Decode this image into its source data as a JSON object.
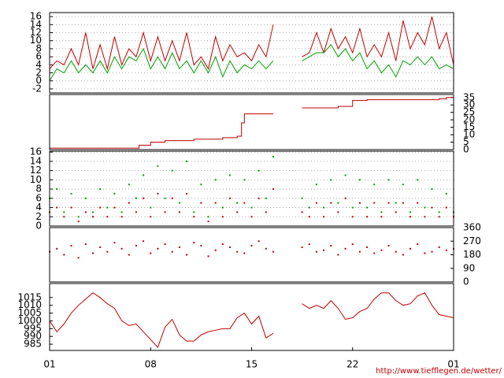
{
  "chart_data": [
    {
      "type": "line",
      "y_axis": "left",
      "grid": true,
      "xlim": [
        0,
        28
      ],
      "ylim": [
        -3,
        17
      ],
      "yticks": [
        -2,
        0,
        2,
        4,
        6,
        8,
        10,
        12,
        14,
        16
      ],
      "x": [
        0,
        0.5,
        1,
        1.5,
        2,
        2.5,
        3,
        3.5,
        4,
        4.5,
        5,
        5.5,
        6,
        6.5,
        7,
        7.5,
        8,
        8.5,
        9,
        9.5,
        10,
        10.5,
        11,
        11.5,
        12,
        12.5,
        13,
        13.5,
        14,
        14.5,
        15,
        15.5,
        16,
        16.5,
        17,
        17.5,
        18,
        18.5,
        19,
        19.5,
        20,
        20.5,
        21,
        21.5,
        22,
        22.5,
        23,
        23.5,
        24,
        24.5,
        25,
        25.5,
        26,
        26.5,
        27,
        27.5,
        28
      ],
      "series": [
        {
          "color": "#c00000",
          "values": [
            3,
            5,
            4,
            8,
            4,
            12,
            3,
            9,
            3,
            11,
            4,
            8,
            6,
            12,
            5,
            11,
            5,
            10,
            5,
            12,
            4,
            6,
            3,
            11,
            5,
            9,
            6,
            7,
            5,
            9,
            6,
            14,
            null,
            null,
            null,
            6,
            7,
            12,
            7,
            13,
            8,
            11,
            7,
            13,
            6,
            9,
            6,
            12,
            5,
            15,
            8,
            12,
            9,
            16,
            8,
            12,
            4
          ]
        },
        {
          "color": "#00a000",
          "values": [
            0,
            3,
            2,
            5,
            2,
            4,
            2,
            5,
            2,
            6,
            3,
            6,
            5,
            8,
            3,
            6,
            3,
            7,
            3,
            5,
            2,
            5,
            2,
            6,
            1,
            5,
            2,
            4,
            3,
            5,
            3,
            5,
            null,
            null,
            null,
            5,
            6,
            7,
            7,
            9,
            6,
            8,
            5,
            7,
            3,
            5,
            2,
            4,
            1,
            5,
            4,
            6,
            4,
            6,
            3,
            4,
            3
          ]
        }
      ]
    },
    {
      "type": "line",
      "step": true,
      "y_axis": "right",
      "grid": false,
      "xlim": [
        0,
        28
      ],
      "ylim": [
        0,
        37
      ],
      "yticks": [
        0,
        5,
        10,
        15,
        20,
        25,
        30,
        35
      ],
      "x": [
        0,
        6,
        6.2,
        7,
        8,
        10,
        12,
        13,
        13.3,
        13.5,
        15.5,
        16,
        17.5,
        20,
        21,
        22,
        27,
        27.5,
        28
      ],
      "series": [
        {
          "color": "#c00000",
          "values": [
            1,
            1,
            3,
            5,
            6,
            7,
            8,
            9,
            18,
            24,
            24,
            null,
            28,
            29,
            33,
            33.5,
            34,
            35,
            35
          ]
        }
      ]
    },
    {
      "type": "scatter",
      "y_axis": "left",
      "grid": true,
      "xlim": [
        0,
        28
      ],
      "ylim": [
        0,
        16.2
      ],
      "yticks": [
        0,
        2,
        4,
        6,
        8,
        10,
        12,
        14,
        16
      ],
      "x": [
        0,
        0.5,
        1,
        1.5,
        2,
        2.5,
        3,
        3.5,
        4,
        4.5,
        5,
        5.5,
        6,
        6.5,
        7,
        7.5,
        8,
        8.5,
        9,
        9.5,
        10,
        10.5,
        11,
        11.5,
        12,
        12.5,
        13,
        13.5,
        14,
        14.5,
        15,
        15.5,
        16,
        16.5,
        17,
        17.5,
        18,
        18.5,
        19,
        19.5,
        20,
        20.5,
        21,
        21.5,
        22,
        22.5,
        23,
        23.5,
        24,
        24.5,
        25,
        25.5,
        26,
        26.5,
        27,
        27.5,
        28
      ],
      "series": [
        {
          "color": "#00a000",
          "values": [
            6,
            8,
            3,
            7,
            2,
            6,
            3,
            8,
            4,
            7,
            3,
            9,
            6,
            11,
            4,
            13,
            6,
            12,
            5,
            14,
            3,
            9,
            2,
            10,
            4,
            11,
            5,
            10,
            4,
            12,
            6,
            15,
            null,
            null,
            null,
            6,
            4,
            9,
            4,
            10,
            5,
            11,
            4,
            10,
            4,
            9,
            3,
            10,
            5,
            9,
            3,
            10,
            4,
            8,
            3,
            7,
            3
          ]
        },
        {
          "color": "#c00000",
          "values": [
            3,
            4,
            2,
            4,
            1,
            3,
            2,
            4,
            2,
            4,
            2,
            5,
            3,
            6,
            2,
            7,
            3,
            6,
            3,
            7,
            2,
            5,
            1,
            5,
            2,
            6,
            3,
            5,
            2,
            6,
            3,
            8,
            null,
            null,
            null,
            3,
            2,
            5,
            2,
            5,
            3,
            6,
            2,
            5,
            2,
            5,
            2,
            5,
            3,
            5,
            2,
            5,
            2,
            4,
            2,
            4,
            2
          ]
        }
      ]
    },
    {
      "type": "scatter",
      "y_axis": "right",
      "grid": false,
      "xlim": [
        0,
        28
      ],
      "ylim": [
        0,
        360
      ],
      "yticks": [
        0,
        90,
        180,
        270,
        360
      ],
      "x": [
        0,
        0.5,
        1,
        1.5,
        2,
        2.5,
        3,
        3.5,
        4,
        4.5,
        5,
        5.5,
        6,
        6.5,
        7,
        7.5,
        8,
        8.5,
        9,
        9.5,
        10,
        10.5,
        11,
        11.5,
        12,
        12.5,
        13,
        13.5,
        14,
        14.5,
        15,
        15.5,
        16,
        16.5,
        17,
        17.5,
        18,
        18.5,
        19,
        19.5,
        20,
        20.5,
        21,
        21.5,
        22,
        22.5,
        23,
        23.5,
        24,
        24.5,
        25,
        25.5,
        26,
        26.5,
        27,
        27.5,
        28
      ],
      "series": [
        {
          "color": "#c00000",
          "values": [
            200,
            220,
            180,
            240,
            160,
            250,
            190,
            230,
            200,
            260,
            220,
            180,
            240,
            270,
            190,
            220,
            250,
            200,
            230,
            180,
            260,
            240,
            170,
            210,
            250,
            230,
            200,
            190,
            240,
            270,
            220,
            200,
            null,
            null,
            null,
            230,
            250,
            200,
            210,
            240,
            180,
            220,
            250,
            200,
            230,
            190,
            210,
            240,
            200,
            180,
            220,
            250,
            190,
            200,
            230,
            210,
            220
          ]
        }
      ]
    },
    {
      "type": "line",
      "y_axis": "left",
      "grid": false,
      "xlim": [
        0,
        28
      ],
      "ylim": [
        981,
        1024
      ],
      "yticks": [
        985,
        990,
        995,
        1000,
        1005,
        1010,
        1015
      ],
      "xticks": [
        {
          "value": 0,
          "label": "01"
        },
        {
          "value": 7,
          "label": "08"
        },
        {
          "value": 14,
          "label": "15"
        },
        {
          "value": 21,
          "label": "22"
        },
        {
          "value": 28,
          "label": "01"
        }
      ],
      "x": [
        0,
        0.5,
        1,
        1.5,
        2,
        2.5,
        3,
        3.5,
        4,
        4.5,
        5,
        5.5,
        6,
        6.5,
        7,
        7.5,
        8,
        8.5,
        9,
        9.5,
        10,
        10.5,
        11,
        11.5,
        12,
        12.5,
        13,
        13.5,
        14,
        14.5,
        15,
        15.5,
        16,
        16.5,
        17,
        17.5,
        18,
        18.5,
        19,
        19.5,
        20,
        20.5,
        21,
        21.5,
        22,
        22.5,
        23,
        23.5,
        24,
        24.5,
        25,
        25.5,
        26,
        26.5,
        27,
        27.5,
        28
      ],
      "series": [
        {
          "color": "#c00000",
          "values": [
            1000,
            993,
            998,
            1005,
            1010,
            1014,
            1018,
            1015,
            1011,
            1008,
            1000,
            997,
            998,
            993,
            988,
            983,
            996,
            1001,
            991,
            987,
            987,
            991,
            993,
            994,
            995,
            995,
            1002,
            1005,
            998,
            1003,
            989,
            992,
            null,
            null,
            null,
            1011,
            1008,
            1010,
            1008,
            1013,
            1008,
            1001,
            1002,
            1006,
            1008,
            1014,
            1018,
            1018,
            1013,
            1010,
            1011,
            1016,
            1018,
            1010,
            1004,
            1003,
            1002
          ]
        }
      ]
    }
  ],
  "footer": "http://www.tiefflegen.de/wetter/"
}
